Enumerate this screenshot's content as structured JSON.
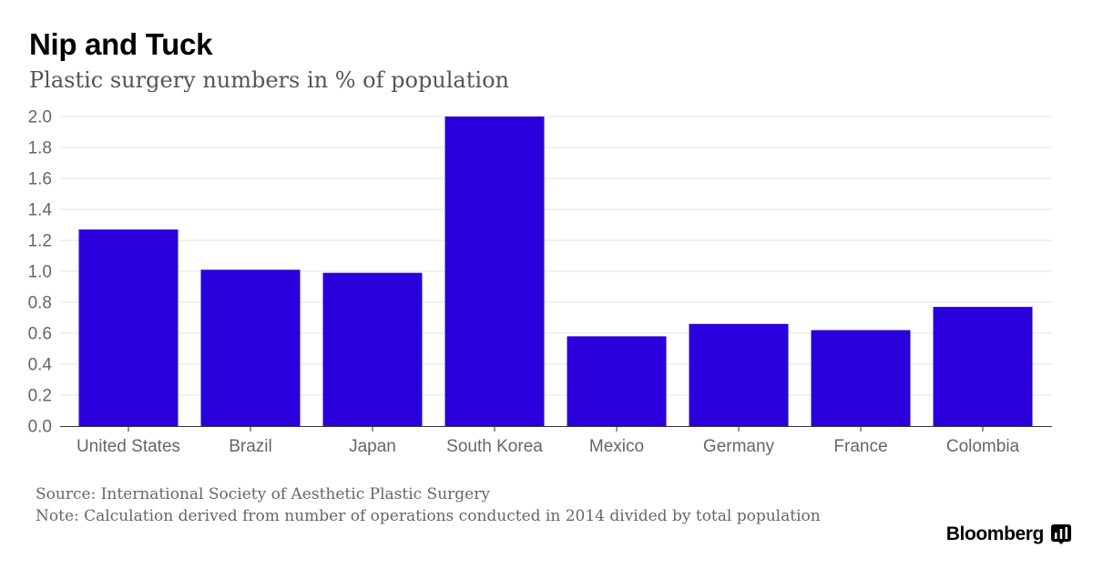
{
  "header": {
    "title": "Nip and Tuck",
    "subtitle": "Plastic surgery numbers in % of population"
  },
  "footer": {
    "source": "Source: International Society of Aesthetic Plastic Surgery",
    "note": "Note: Calculation derived from number of operations conducted in 2014 divided by total population",
    "brand": "Bloomberg"
  },
  "colors": {
    "bar": "#2a00dd",
    "grid": "#e3e3e3",
    "axis": "#333333",
    "tick_label": "#666666"
  },
  "chart_data": {
    "type": "bar",
    "title": "Nip and Tuck",
    "subtitle": "Plastic surgery numbers in % of population",
    "xlabel": "",
    "ylabel": "",
    "categories": [
      "United States",
      "Brazil",
      "Japan",
      "South Korea",
      "Mexico",
      "Germany",
      "France",
      "Colombia"
    ],
    "values": [
      1.27,
      1.01,
      0.99,
      2.0,
      0.58,
      0.66,
      0.62,
      0.77
    ],
    "ylim": [
      0,
      2.0
    ],
    "yticks": [
      "0.0",
      "0.2",
      "0.4",
      "0.6",
      "0.8",
      "1.0",
      "1.2",
      "1.4",
      "1.6",
      "1.8",
      "2.0"
    ],
    "grid": true,
    "legend": "none"
  }
}
